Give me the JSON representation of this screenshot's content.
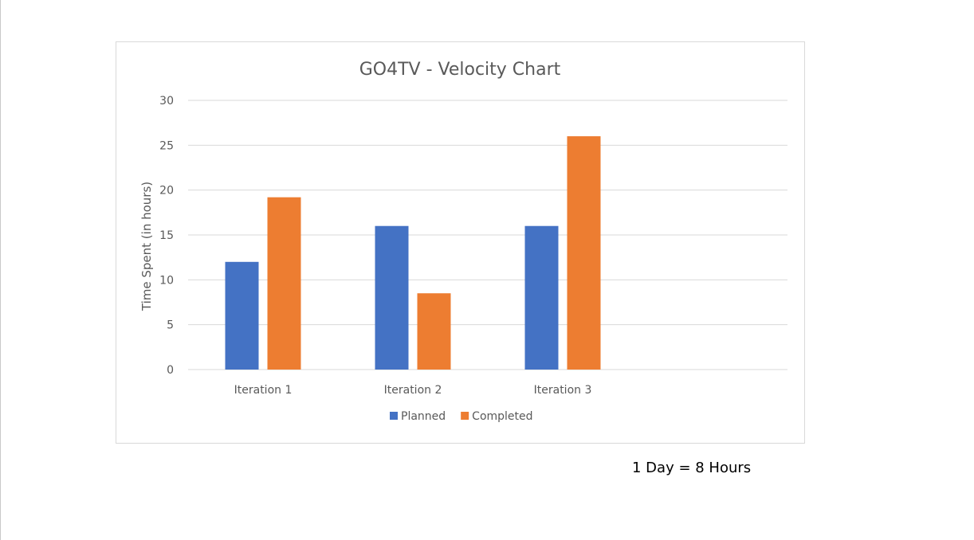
{
  "chart_data": {
    "type": "bar",
    "title": "GO4TV - Velocity Chart",
    "xlabel": "",
    "ylabel": "Time Spent (in hours)",
    "categories": [
      "Iteration 1",
      "Iteration 2",
      "Iteration 3"
    ],
    "series": [
      {
        "name": "Planned",
        "values": [
          12,
          16,
          16
        ],
        "color": "#4472C4"
      },
      {
        "name": "Completed",
        "values": [
          19.2,
          8.5,
          26
        ],
        "color": "#ED7D31"
      }
    ],
    "ylim": [
      0,
      30
    ],
    "yticks": [
      0,
      5,
      10,
      15,
      20,
      25,
      30
    ],
    "grid": true,
    "legend_position": "bottom"
  },
  "note": "1 Day = 8 Hours"
}
